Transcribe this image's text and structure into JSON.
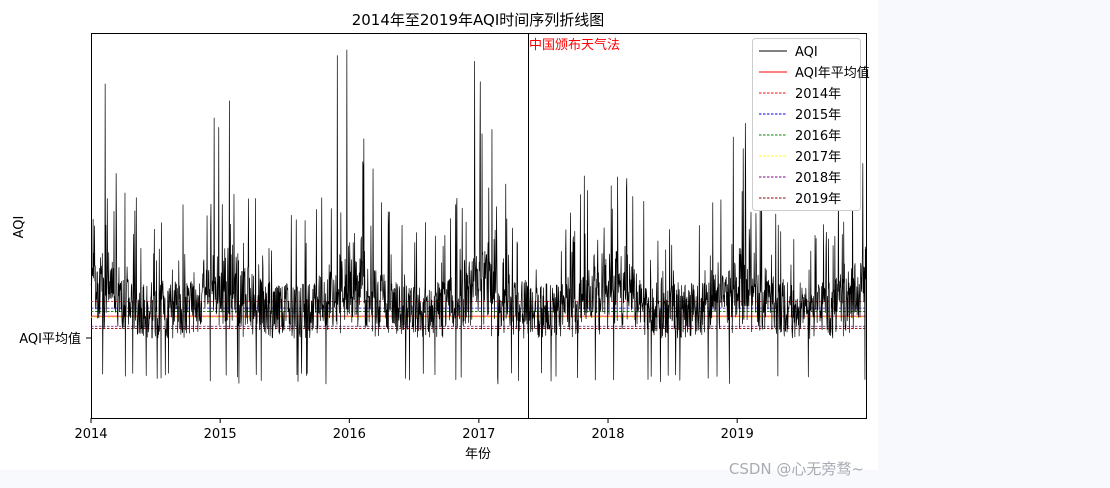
{
  "watermark": "CSDN @心无旁骛~",
  "chart_data": {
    "type": "line",
    "title": "2014年至2019年AQI时间序列折线图",
    "xlabel": "年份",
    "ylabel": "AQI",
    "x_range": [
      "2014-01-01",
      "2019-12-31"
    ],
    "x_ticks": [
      "2014",
      "2015",
      "2016",
      "2017",
      "2018",
      "2019"
    ],
    "y_ticks": [
      {
        "value": 75,
        "label": "AQI平均值"
      }
    ],
    "ylim": [
      -15,
      325
    ],
    "grid": false,
    "legend": {
      "position": "top-right"
    },
    "annotations": [
      {
        "x": "2017-05-05",
        "text": "中国颁布天气法",
        "color": "#ff0000"
      }
    ],
    "series": [
      {
        "name": "AQI",
        "color": "#000000",
        "style": "solid",
        "note": "Daily AQI values, roughly 20–300, with winter peaks and a few drops to the axis floor.",
        "peaks": [
          {
            "x": "2014-02-10",
            "y": 280
          },
          {
            "x": "2014-12-15",
            "y": 250
          },
          {
            "x": "2015-11-28",
            "y": 305
          },
          {
            "x": "2015-12-25",
            "y": 310
          },
          {
            "x": "2016-12-20",
            "y": 300
          },
          {
            "x": "2017-01-05",
            "y": 282
          },
          {
            "x": "2018-01-10",
            "y": 190
          },
          {
            "x": "2019-01-15",
            "y": 185
          }
        ]
      },
      {
        "name": "AQI年平均值",
        "color": "#ff0000",
        "style": "solid",
        "value": 75
      },
      {
        "name": "2014年",
        "color": "#ff0000",
        "style": "dashed",
        "value": 88
      },
      {
        "name": "2015年",
        "color": "#0000ff",
        "style": "dashed",
        "value": 82
      },
      {
        "name": "2016年",
        "color": "#008000",
        "style": "dashed",
        "value": 79
      },
      {
        "name": "2017年",
        "color": "#ffff00",
        "style": "dashed",
        "value": 74
      },
      {
        "name": "2018年",
        "color": "#800080",
        "style": "dashed",
        "value": 66
      },
      {
        "name": "2019年",
        "color": "#8b0000",
        "style": "dashed",
        "value": 64
      }
    ]
  }
}
